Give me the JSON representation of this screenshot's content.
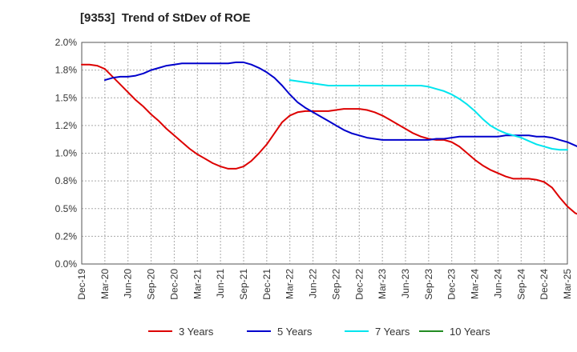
{
  "chart_data": {
    "type": "line",
    "title": "[9353]  Trend of StDev of ROE",
    "xlabel": "",
    "ylabel": "",
    "x_ticks": [
      "Dec-19",
      "Mar-20",
      "Jun-20",
      "Sep-20",
      "Dec-20",
      "Mar-21",
      "Jun-21",
      "Sep-21",
      "Dec-21",
      "Mar-22",
      "Jun-22",
      "Sep-22",
      "Dec-22",
      "Mar-23",
      "Jun-23",
      "Sep-23",
      "Dec-23",
      "Mar-24",
      "Jun-24",
      "Sep-24",
      "Dec-24",
      "Mar-25"
    ],
    "y_ticks": [
      "0.0%",
      "0.2%",
      "0.5%",
      "0.8%",
      "1.0%",
      "1.2%",
      "1.5%",
      "1.8%",
      "2.0%"
    ],
    "ylim": [
      0,
      2.0
    ],
    "grid": true,
    "legend_position": "bottom",
    "series": [
      {
        "name": "3 Years",
        "color": "#dd0000",
        "points": [
          [
            "Dec-19",
            1.8
          ],
          [
            "Jan-20",
            1.8
          ],
          [
            "Feb-20",
            1.79
          ],
          [
            "Mar-20",
            1.76
          ],
          [
            "Apr-20",
            1.69
          ],
          [
            "May-20",
            1.62
          ],
          [
            "Jun-20",
            1.55
          ],
          [
            "Jul-20",
            1.48
          ],
          [
            "Aug-20",
            1.42
          ],
          [
            "Sep-20",
            1.35
          ],
          [
            "Oct-20",
            1.29
          ],
          [
            "Nov-20",
            1.22
          ],
          [
            "Dec-20",
            1.16
          ],
          [
            "Jan-21",
            1.1
          ],
          [
            "Feb-21",
            1.04
          ],
          [
            "Mar-21",
            0.99
          ],
          [
            "Apr-21",
            0.95
          ],
          [
            "May-21",
            0.91
          ],
          [
            "Jun-21",
            0.88
          ],
          [
            "Jul-21",
            0.86
          ],
          [
            "Aug-21",
            0.86
          ],
          [
            "Sep-21",
            0.88
          ],
          [
            "Oct-21",
            0.93
          ],
          [
            "Nov-21",
            1.0
          ],
          [
            "Dec-21",
            1.08
          ],
          [
            "Jan-22",
            1.18
          ],
          [
            "Feb-22",
            1.28
          ],
          [
            "Mar-22",
            1.34
          ],
          [
            "Apr-22",
            1.37
          ],
          [
            "May-22",
            1.38
          ],
          [
            "Jun-22",
            1.38
          ],
          [
            "Jul-22",
            1.38
          ],
          [
            "Aug-22",
            1.38
          ],
          [
            "Sep-22",
            1.39
          ],
          [
            "Oct-22",
            1.4
          ],
          [
            "Nov-22",
            1.4
          ],
          [
            "Dec-22",
            1.4
          ],
          [
            "Jan-23",
            1.39
          ],
          [
            "Feb-23",
            1.37
          ],
          [
            "Mar-23",
            1.34
          ],
          [
            "Apr-23",
            1.3
          ],
          [
            "May-23",
            1.26
          ],
          [
            "Jun-23",
            1.22
          ],
          [
            "Jul-23",
            1.18
          ],
          [
            "Aug-23",
            1.15
          ],
          [
            "Sep-23",
            1.13
          ],
          [
            "Oct-23",
            1.12
          ],
          [
            "Nov-23",
            1.12
          ],
          [
            "Dec-23",
            1.1
          ],
          [
            "Jan-24",
            1.06
          ],
          [
            "Feb-24",
            1.0
          ],
          [
            "Mar-24",
            0.94
          ],
          [
            "Apr-24",
            0.89
          ],
          [
            "May-24",
            0.85
          ],
          [
            "Jun-24",
            0.82
          ],
          [
            "Jul-24",
            0.79
          ],
          [
            "Aug-24",
            0.77
          ],
          [
            "Sep-24",
            0.77
          ],
          [
            "Oct-24",
            0.77
          ],
          [
            "Nov-24",
            0.76
          ],
          [
            "Dec-24",
            0.74
          ],
          [
            "Jan-25",
            0.69
          ],
          [
            "Feb-25",
            0.6
          ],
          [
            "Mar-25",
            0.52
          ],
          [
            "Apr-25",
            0.46
          ],
          [
            "May-25",
            0.43
          ],
          [
            "Jun-25",
            0.42
          ]
        ]
      },
      {
        "name": "5 Years",
        "color": "#0000cc",
        "points": [
          [
            "Mar-20",
            1.66
          ],
          [
            "Apr-20",
            1.68
          ],
          [
            "May-20",
            1.69
          ],
          [
            "Jun-20",
            1.69
          ],
          [
            "Jul-20",
            1.7
          ],
          [
            "Aug-20",
            1.72
          ],
          [
            "Sep-20",
            1.75
          ],
          [
            "Oct-20",
            1.77
          ],
          [
            "Nov-20",
            1.79
          ],
          [
            "Dec-20",
            1.8
          ],
          [
            "Jan-21",
            1.81
          ],
          [
            "Feb-21",
            1.81
          ],
          [
            "Mar-21",
            1.81
          ],
          [
            "Apr-21",
            1.81
          ],
          [
            "May-21",
            1.81
          ],
          [
            "Jun-21",
            1.81
          ],
          [
            "Jul-21",
            1.81
          ],
          [
            "Aug-21",
            1.82
          ],
          [
            "Sep-21",
            1.82
          ],
          [
            "Oct-21",
            1.8
          ],
          [
            "Nov-21",
            1.77
          ],
          [
            "Dec-21",
            1.73
          ],
          [
            "Jan-22",
            1.68
          ],
          [
            "Feb-22",
            1.61
          ],
          [
            "Mar-22",
            1.53
          ],
          [
            "Apr-22",
            1.46
          ],
          [
            "May-22",
            1.41
          ],
          [
            "Jun-22",
            1.37
          ],
          [
            "Jul-22",
            1.33
          ],
          [
            "Aug-22",
            1.29
          ],
          [
            "Sep-22",
            1.25
          ],
          [
            "Oct-22",
            1.21
          ],
          [
            "Nov-22",
            1.18
          ],
          [
            "Dec-22",
            1.16
          ],
          [
            "Jan-23",
            1.14
          ],
          [
            "Feb-23",
            1.13
          ],
          [
            "Mar-23",
            1.12
          ],
          [
            "Apr-23",
            1.12
          ],
          [
            "May-23",
            1.12
          ],
          [
            "Jun-23",
            1.12
          ],
          [
            "Jul-23",
            1.12
          ],
          [
            "Aug-23",
            1.12
          ],
          [
            "Sep-23",
            1.12
          ],
          [
            "Oct-23",
            1.13
          ],
          [
            "Nov-23",
            1.13
          ],
          [
            "Dec-23",
            1.14
          ],
          [
            "Jan-24",
            1.15
          ],
          [
            "Feb-24",
            1.15
          ],
          [
            "Mar-24",
            1.15
          ],
          [
            "Apr-24",
            1.15
          ],
          [
            "May-24",
            1.15
          ],
          [
            "Jun-24",
            1.15
          ],
          [
            "Jul-24",
            1.16
          ],
          [
            "Aug-24",
            1.16
          ],
          [
            "Sep-24",
            1.16
          ],
          [
            "Oct-24",
            1.16
          ],
          [
            "Nov-24",
            1.15
          ],
          [
            "Dec-24",
            1.15
          ],
          [
            "Jan-25",
            1.14
          ],
          [
            "Feb-25",
            1.12
          ],
          [
            "Mar-25",
            1.1
          ],
          [
            "Apr-25",
            1.07
          ],
          [
            "May-25",
            1.04
          ]
        ]
      },
      {
        "name": "7 Years",
        "color": "#00e5ee",
        "points": [
          [
            "Mar-22",
            1.66
          ],
          [
            "Apr-22",
            1.65
          ],
          [
            "May-22",
            1.64
          ],
          [
            "Jun-22",
            1.63
          ],
          [
            "Jul-22",
            1.62
          ],
          [
            "Aug-22",
            1.61
          ],
          [
            "Sep-22",
            1.61
          ],
          [
            "Oct-22",
            1.61
          ],
          [
            "Nov-22",
            1.61
          ],
          [
            "Dec-22",
            1.61
          ],
          [
            "Jan-23",
            1.61
          ],
          [
            "Feb-23",
            1.61
          ],
          [
            "Mar-23",
            1.61
          ],
          [
            "Apr-23",
            1.61
          ],
          [
            "May-23",
            1.61
          ],
          [
            "Jun-23",
            1.61
          ],
          [
            "Jul-23",
            1.61
          ],
          [
            "Aug-23",
            1.61
          ],
          [
            "Sep-23",
            1.6
          ],
          [
            "Oct-23",
            1.58
          ],
          [
            "Nov-23",
            1.56
          ],
          [
            "Dec-23",
            1.53
          ],
          [
            "Jan-24",
            1.49
          ],
          [
            "Feb-24",
            1.44
          ],
          [
            "Mar-24",
            1.38
          ],
          [
            "Apr-24",
            1.31
          ],
          [
            "May-24",
            1.25
          ],
          [
            "Jun-24",
            1.21
          ],
          [
            "Jul-24",
            1.18
          ],
          [
            "Aug-24",
            1.16
          ],
          [
            "Sep-24",
            1.14
          ],
          [
            "Oct-24",
            1.11
          ],
          [
            "Nov-24",
            1.08
          ],
          [
            "Dec-24",
            1.06
          ],
          [
            "Jan-25",
            1.04
          ],
          [
            "Feb-25",
            1.03
          ],
          [
            "Mar-25",
            1.03
          ]
        ]
      },
      {
        "name": "10 Years",
        "color": "#228b22",
        "points": []
      }
    ]
  }
}
